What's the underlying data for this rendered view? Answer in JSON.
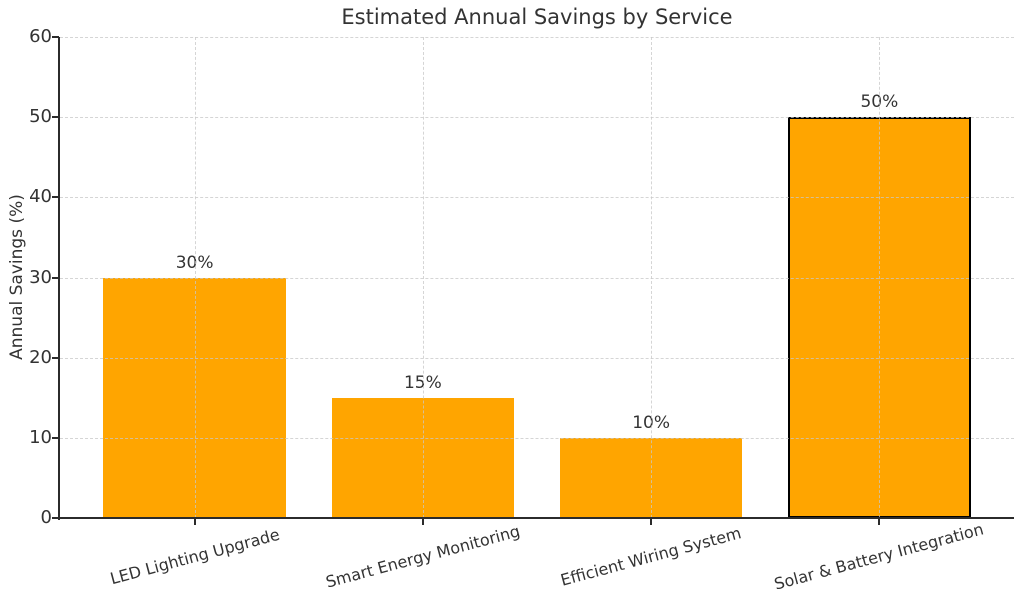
{
  "figure": {
    "background": "#ffffff"
  },
  "chart_data": {
    "type": "bar",
    "title": "Estimated Annual Savings by Service",
    "xlabel": "",
    "ylabel": "Annual Savings (%)",
    "categories": [
      "LED Lighting Upgrade",
      "Smart Energy Monitoring",
      "Efficient Wiring System",
      "Solar & Battery Integration"
    ],
    "values": [
      30,
      15,
      10,
      50
    ],
    "bar_labels": [
      "30%",
      "15%",
      "10%",
      "50%"
    ],
    "ylim": [
      0,
      60
    ],
    "yticks": [
      0,
      10,
      20,
      30,
      40,
      50,
      60
    ],
    "bar_width_fraction": 0.8,
    "bar_color": "#FFA500",
    "highlight_index": 3,
    "highlight_edge_color": "#000000",
    "grid": true,
    "grid_linestyle": "dashed",
    "grid_color": "#c8c8c8",
    "x_tick_rotation_deg": 15,
    "text_color": "#333333",
    "spine_color": "#2b2b2b",
    "legend": null
  }
}
